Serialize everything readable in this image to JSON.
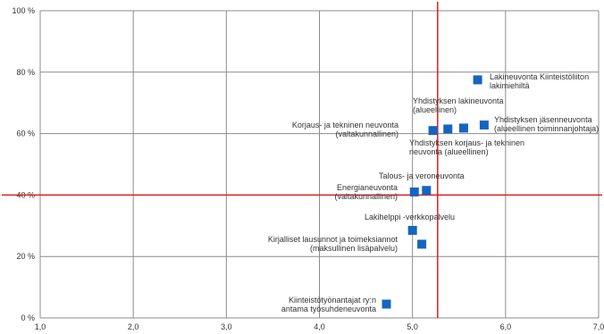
{
  "chart_data": {
    "type": "scatter",
    "title": "",
    "xlabel": "",
    "ylabel": "",
    "xlim": [
      1.0,
      7.0
    ],
    "ylim": [
      0,
      100
    ],
    "x_ticks": [
      {
        "v": 1.0,
        "label": "1,0"
      },
      {
        "v": 2.0,
        "label": "2,0"
      },
      {
        "v": 3.0,
        "label": "3,0"
      },
      {
        "v": 4.0,
        "label": "4,0"
      },
      {
        "v": 5.0,
        "label": "5,0"
      },
      {
        "v": 6.0,
        "label": "6,0"
      },
      {
        "v": 7.0,
        "label": "7,0"
      }
    ],
    "y_ticks": [
      {
        "v": 0,
        "label": "0 %"
      },
      {
        "v": 20,
        "label": "20 %"
      },
      {
        "v": 40,
        "label": "40 %"
      },
      {
        "v": 60,
        "label": "60 %"
      },
      {
        "v": 80,
        "label": "80 %"
      },
      {
        "v": 100,
        "label": "100 %"
      }
    ],
    "grid": true,
    "marker_color": "#1565C0",
    "reference_line_color": "#E02020",
    "reference_lines": {
      "x": 5.27,
      "y": 40
    },
    "points": [
      {
        "x": 5.7,
        "y": 77.5
      },
      {
        "x": 5.77,
        "y": 62.8
      },
      {
        "x": 5.55,
        "y": 61.8
      },
      {
        "x": 5.38,
        "y": 61.5
      },
      {
        "x": 5.22,
        "y": 61.0
      },
      {
        "x": 5.15,
        "y": 41.5
      },
      {
        "x": 5.02,
        "y": 41.0
      },
      {
        "x": 5.0,
        "y": 28.5
      },
      {
        "x": 5.1,
        "y": 24.0
      },
      {
        "x": 4.72,
        "y": 4.5
      }
    ],
    "annotations": [
      {
        "lines": [
          "Lakineuvonta Kiinteistöliiton",
          "lakimiehiltä"
        ]
      },
      {
        "lines": [
          "Yhdistyksen jäsenneuvonta",
          "(alueellinen toiminnanjohtaja)"
        ]
      },
      {
        "lines": [
          "Yhdistyksen lakineuvonta",
          "(alueellinen)"
        ]
      },
      {
        "lines": [
          "Korjaus- ja tekninen neuvonta",
          "(valtakunnallinen)"
        ]
      },
      {
        "lines": [
          "Yhdistyksen korjaus- ja tekninen",
          "neuvonta (alueellinen)"
        ]
      },
      {
        "lines": [
          "Talous- ja veroneuvonta"
        ]
      },
      {
        "lines": [
          "Energianeuvonta",
          "(valtakunnallinen)"
        ]
      },
      {
        "lines": [
          "Lakihelppi -verkkopalvelu"
        ]
      },
      {
        "lines": [
          "Kirjalliset lausunnot ja toimeksiannot",
          "(maksullinen lisäpalvelu)"
        ]
      },
      {
        "lines": [
          "Kiinteistötyönantajat ry:n",
          "antama työsuhdeneuvonta"
        ]
      }
    ]
  }
}
